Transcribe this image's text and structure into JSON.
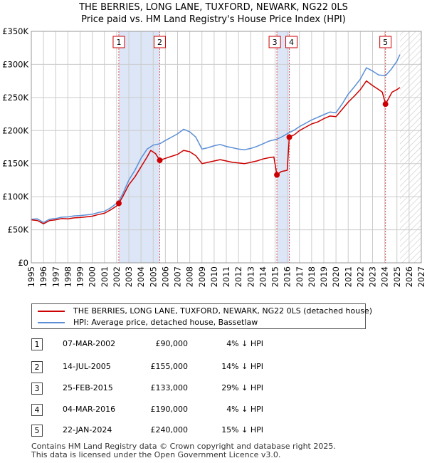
{
  "title": "THE BERRIES, LONG LANE, TUXFORD, NEWARK, NG22 0LS",
  "subtitle": "Price paid vs. HM Land Registry's House Price Index (HPI)",
  "colors": {
    "red": "#cc0000",
    "blue": "#5b8fd6",
    "grid": "#cccccc",
    "shade": "#dce6f7"
  },
  "chart_data": {
    "type": "line",
    "title": "THE BERRIES, LONG LANE, TUXFORD, NEWARK, NG22 0LS",
    "subtitle": "Price paid vs. HM Land Registry's House Price Index (HPI)",
    "xlim": [
      1995,
      2027
    ],
    "ylim": [
      0,
      350000
    ],
    "xticks": [
      1995,
      1996,
      1997,
      1998,
      1999,
      2000,
      2001,
      2002,
      2003,
      2004,
      2005,
      2006,
      2007,
      2008,
      2009,
      2010,
      2011,
      2012,
      2013,
      2014,
      2015,
      2016,
      2017,
      2018,
      2019,
      2020,
      2021,
      2022,
      2023,
      2024,
      2025,
      2026,
      2027
    ],
    "yticks": [
      0,
      50000,
      100000,
      150000,
      200000,
      250000,
      300000,
      350000
    ],
    "ytick_labels": [
      "£0",
      "£50K",
      "£100K",
      "£150K",
      "£200K",
      "£250K",
      "£300K",
      "£350K"
    ],
    "data_end": 2025.25,
    "series": [
      {
        "name": "THE BERRIES, LONG LANE, TUXFORD, NEWARK, NG22 0LS (detached house)",
        "color": "#cc0000",
        "points": [
          [
            1995.0,
            65000
          ],
          [
            1995.5,
            64000
          ],
          [
            1996.0,
            59000
          ],
          [
            1996.5,
            64000
          ],
          [
            1997.0,
            65000
          ],
          [
            1997.5,
            67000
          ],
          [
            1998.0,
            66500
          ],
          [
            1998.5,
            68000
          ],
          [
            1999.0,
            68500
          ],
          [
            1999.5,
            69500
          ],
          [
            2000.0,
            70500
          ],
          [
            2000.5,
            73000
          ],
          [
            2001.0,
            75000
          ],
          [
            2001.5,
            80000
          ],
          [
            2002.0,
            86000
          ],
          [
            2002.18,
            90000
          ],
          [
            2002.5,
            100000
          ],
          [
            2003.0,
            118000
          ],
          [
            2003.5,
            130000
          ],
          [
            2004.0,
            145000
          ],
          [
            2004.5,
            160000
          ],
          [
            2004.8,
            170000
          ],
          [
            2005.2,
            165000
          ],
          [
            2005.54,
            155000
          ],
          [
            2006.0,
            158000
          ],
          [
            2006.5,
            161000
          ],
          [
            2007.0,
            164000
          ],
          [
            2007.5,
            170000
          ],
          [
            2008.0,
            168000
          ],
          [
            2008.5,
            162000
          ],
          [
            2009.0,
            150000
          ],
          [
            2009.5,
            152000
          ],
          [
            2010.0,
            154000
          ],
          [
            2010.5,
            156000
          ],
          [
            2011.0,
            154000
          ],
          [
            2011.5,
            152000
          ],
          [
            2012.0,
            151000
          ],
          [
            2012.5,
            150000
          ],
          [
            2013.0,
            152000
          ],
          [
            2013.5,
            154000
          ],
          [
            2014.0,
            157000
          ],
          [
            2014.5,
            159000
          ],
          [
            2014.9,
            160000
          ],
          [
            2015.15,
            133000
          ],
          [
            2015.5,
            138000
          ],
          [
            2016.0,
            140000
          ],
          [
            2016.17,
            190000
          ],
          [
            2016.6,
            194000
          ],
          [
            2017.0,
            200000
          ],
          [
            2017.5,
            205000
          ],
          [
            2018.0,
            210000
          ],
          [
            2018.5,
            213000
          ],
          [
            2019.0,
            218000
          ],
          [
            2019.5,
            222000
          ],
          [
            2020.0,
            221000
          ],
          [
            2020.5,
            232000
          ],
          [
            2021.0,
            243000
          ],
          [
            2021.5,
            252000
          ],
          [
            2022.0,
            262000
          ],
          [
            2022.5,
            275000
          ],
          [
            2023.0,
            268000
          ],
          [
            2023.5,
            262000
          ],
          [
            2023.8,
            258000
          ],
          [
            2024.06,
            240000
          ],
          [
            2024.3,
            248000
          ],
          [
            2024.6,
            258000
          ],
          [
            2025.0,
            262000
          ],
          [
            2025.25,
            265000
          ]
        ]
      },
      {
        "name": "HPI: Average price, detached house, Bassetlaw",
        "color": "#5b8fd6",
        "points": [
          [
            1995.0,
            66000
          ],
          [
            1995.5,
            66500
          ],
          [
            1996.0,
            61000
          ],
          [
            1996.5,
            66000
          ],
          [
            1997.0,
            67000
          ],
          [
            1997.5,
            69000
          ],
          [
            1998.0,
            69500
          ],
          [
            1998.5,
            71000
          ],
          [
            1999.0,
            71500
          ],
          [
            1999.5,
            72500
          ],
          [
            2000.0,
            73500
          ],
          [
            2000.5,
            76000
          ],
          [
            2001.0,
            78000
          ],
          [
            2001.5,
            83000
          ],
          [
            2002.0,
            90000
          ],
          [
            2002.18,
            94000
          ],
          [
            2002.5,
            104000
          ],
          [
            2003.0,
            125000
          ],
          [
            2003.5,
            140000
          ],
          [
            2004.0,
            158000
          ],
          [
            2004.5,
            172000
          ],
          [
            2005.0,
            178000
          ],
          [
            2005.54,
            180000
          ],
          [
            2006.0,
            185000
          ],
          [
            2006.5,
            190000
          ],
          [
            2007.0,
            195000
          ],
          [
            2007.5,
            202000
          ],
          [
            2008.0,
            198000
          ],
          [
            2008.5,
            190000
          ],
          [
            2009.0,
            172000
          ],
          [
            2009.5,
            174000
          ],
          [
            2010.0,
            177000
          ],
          [
            2010.5,
            179000
          ],
          [
            2011.0,
            176000
          ],
          [
            2011.5,
            174000
          ],
          [
            2012.0,
            172000
          ],
          [
            2012.5,
            171000
          ],
          [
            2013.0,
            173000
          ],
          [
            2013.5,
            176000
          ],
          [
            2014.0,
            180000
          ],
          [
            2014.5,
            184000
          ],
          [
            2015.15,
            187000
          ],
          [
            2015.5,
            190000
          ],
          [
            2016.17,
            197000
          ],
          [
            2016.6,
            201000
          ],
          [
            2017.0,
            206000
          ],
          [
            2017.5,
            211000
          ],
          [
            2018.0,
            216000
          ],
          [
            2018.5,
            220000
          ],
          [
            2019.0,
            224000
          ],
          [
            2019.5,
            228000
          ],
          [
            2020.0,
            227000
          ],
          [
            2020.5,
            240000
          ],
          [
            2021.0,
            255000
          ],
          [
            2021.5,
            266000
          ],
          [
            2022.0,
            278000
          ],
          [
            2022.5,
            295000
          ],
          [
            2023.0,
            290000
          ],
          [
            2023.5,
            284000
          ],
          [
            2024.06,
            283000
          ],
          [
            2024.5,
            292000
          ],
          [
            2025.0,
            305000
          ],
          [
            2025.25,
            315000
          ]
        ]
      }
    ],
    "transactions": [
      {
        "n": "1",
        "x": 2002.18,
        "date": "07-MAR-2002",
        "price": 90000,
        "price_label": "£90,000",
        "hpi": "4% ↓ HPI"
      },
      {
        "n": "2",
        "x": 2005.54,
        "date": "14-JUL-2005",
        "price": 155000,
        "price_label": "£155,000",
        "hpi": "14% ↓ HPI"
      },
      {
        "n": "3",
        "x": 2015.15,
        "date": "25-FEB-2015",
        "price": 133000,
        "price_label": "£133,000",
        "hpi": "29% ↓ HPI"
      },
      {
        "n": "4",
        "x": 2016.17,
        "date": "04-MAR-2016",
        "price": 190000,
        "price_label": "£190,000",
        "hpi": "4% ↓ HPI"
      },
      {
        "n": "5",
        "x": 2024.06,
        "date": "22-JAN-2024",
        "price": 240000,
        "price_label": "£240,000",
        "hpi": "15% ↓ HPI"
      }
    ],
    "shaded_ranges": [
      [
        2002.18,
        2005.54
      ],
      [
        2015.15,
        2016.17
      ]
    ]
  },
  "legend": {
    "red_label": "THE BERRIES, LONG LANE, TUXFORD, NEWARK, NG22 0LS (detached house)",
    "blue_label": "HPI: Average price, detached house, Bassetlaw"
  },
  "footer": {
    "line1": "Contains HM Land Registry data © Crown copyright and database right 2025.",
    "line2": "This data is licensed under the Open Government Licence v3.0."
  }
}
